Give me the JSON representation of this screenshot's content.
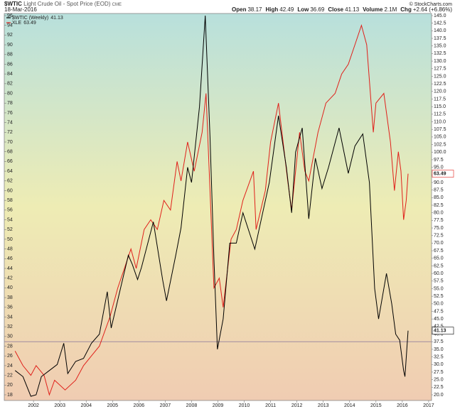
{
  "chart_data": {
    "type": "line",
    "title": "$WTIC",
    "subtitle": "Light Crude Oil - Spot Price (EOD)",
    "exchange": "CME",
    "date": "18-Mar-2016",
    "source": "© StockCharts.com",
    "quote": [
      {
        "label": "Open",
        "value": 38.17
      },
      {
        "label": "High",
        "value": 42.49
      },
      {
        "label": "Low",
        "value": 36.69
      },
      {
        "label": "Close",
        "value": 41.13
      },
      {
        "label": "Volume",
        "value": "2.1M"
      },
      {
        "label": "Chg",
        "value": "+2.64 (+6.86%)"
      }
    ],
    "xlim": [
      2000.89,
      2017.11
    ],
    "xticks": [
      2002,
      2003,
      2004,
      2005,
      2006,
      2007,
      2008,
      2009,
      2010,
      2011,
      2012,
      2013,
      2014,
      2015,
      2016,
      2017
    ],
    "ylim": [
      18,
      96
    ],
    "yticks": [
      18,
      20,
      22,
      24,
      26,
      28,
      30,
      32,
      34,
      36,
      38,
      40,
      42,
      44,
      46,
      48,
      50,
      52,
      54,
      56,
      58,
      60,
      62,
      64,
      66,
      68,
      70,
      72,
      74,
      76,
      78,
      80,
      82,
      84,
      86,
      88,
      90,
      92,
      94,
      96
    ],
    "y2lim": [
      20,
      145
    ],
    "y2ticks": [
      {
        "value": 20,
        "label": "20.0"
      },
      {
        "value": 22.5,
        "label": "22.5"
      },
      {
        "value": 25,
        "label": "25.0"
      },
      {
        "value": 27.5,
        "label": "27.5"
      },
      {
        "value": 30,
        "label": "30.0"
      },
      {
        "value": 32.5,
        "label": "32.5"
      },
      {
        "value": 35,
        "label": "35.0"
      },
      {
        "value": 37.5,
        "label": "37.5"
      },
      {
        "value": 40,
        "label": "40.0"
      },
      {
        "value": 42.5,
        "label": "42.5"
      },
      {
        "value": 45,
        "label": "45.0"
      },
      {
        "value": 47.5,
        "label": "47.5"
      },
      {
        "value": 50,
        "label": "50.0"
      },
      {
        "value": 52.5,
        "label": "52.5"
      },
      {
        "value": 55,
        "label": "55.0"
      },
      {
        "value": 57.5,
        "label": "57.5"
      },
      {
        "value": 60,
        "label": "60.0"
      },
      {
        "value": 62.5,
        "label": "62.5"
      },
      {
        "value": 65,
        "label": "65.0"
      },
      {
        "value": 67.5,
        "label": "67.5"
      },
      {
        "value": 70,
        "label": "70.0"
      },
      {
        "value": 72.5,
        "label": "72.5"
      },
      {
        "value": 75,
        "label": "75.0"
      },
      {
        "value": 77.5,
        "label": "77.5"
      },
      {
        "value": 80,
        "label": "80.0"
      },
      {
        "value": 82.5,
        "label": "82.5"
      },
      {
        "value": 85,
        "label": "85.0"
      },
      {
        "value": 87.5,
        "label": "87.5"
      },
      {
        "value": 90,
        "label": "90.0"
      },
      {
        "value": 92.5,
        "label": "92.5"
      },
      {
        "value": 95,
        "label": "95.0"
      },
      {
        "value": 97.5,
        "label": "97.5"
      },
      {
        "value": 100,
        "label": "100.0"
      },
      {
        "value": 102.5,
        "label": "102.5"
      },
      {
        "value": 105,
        "label": "105.0"
      },
      {
        "value": 107.5,
        "label": "107.5"
      },
      {
        "value": 110,
        "label": "110.0"
      },
      {
        "value": 112.5,
        "label": "112.5"
      },
      {
        "value": 115,
        "label": "115.0"
      },
      {
        "value": 117.5,
        "label": "117.5"
      },
      {
        "value": 120,
        "label": "120.0"
      },
      {
        "value": 122.5,
        "label": "122.5"
      },
      {
        "value": 125,
        "label": "125.0"
      },
      {
        "value": 127.5,
        "label": "127.5"
      },
      {
        "value": 130,
        "label": "130.0"
      },
      {
        "value": 132.5,
        "label": "132.5"
      },
      {
        "value": 135,
        "label": "135.0"
      },
      {
        "value": 137.5,
        "label": "137.5"
      },
      {
        "value": 140,
        "label": "140.0"
      },
      {
        "value": 142.5,
        "label": "142.5"
      },
      {
        "value": 145,
        "label": "145.0"
      }
    ],
    "reference_line": {
      "value": 37.5,
      "axis": "y2",
      "color": "#a08aa0"
    },
    "series": [
      {
        "name": "$WTIC (Weekly)",
        "color": "#000000",
        "axis": "y2",
        "x": [
          2001.3,
          2001.6,
          2001.9,
          2002.1,
          2002.3,
          2002.6,
          2002.9,
          2003.15,
          2003.3,
          2003.6,
          2003.9,
          2004.2,
          2004.5,
          2004.8,
          2004.95,
          2005.3,
          2005.6,
          2005.75,
          2005.95,
          2006.1,
          2006.55,
          2006.9,
          2007.05,
          2007.4,
          2007.6,
          2007.85,
          2008.0,
          2008.3,
          2008.52,
          2008.7,
          2008.85,
          2008.98,
          2009.2,
          2009.45,
          2009.7,
          2009.95,
          2010.4,
          2010.7,
          2010.95,
          2011.3,
          2011.6,
          2011.8,
          2011.95,
          2012.2,
          2012.45,
          2012.7,
          2012.95,
          2013.2,
          2013.6,
          2013.95,
          2014.2,
          2014.5,
          2014.75,
          2014.95,
          2015.1,
          2015.4,
          2015.6,
          2015.75,
          2015.9,
          2016.05,
          2016.1,
          2016.22
        ],
        "values": [
          28,
          26,
          19.5,
          20,
          26,
          28,
          30,
          37,
          27,
          31,
          32,
          37,
          40,
          54,
          42,
          55,
          66,
          63,
          58,
          62,
          77,
          58,
          51,
          66,
          75,
          95,
          90,
          115,
          145,
          105,
          65,
          35,
          45,
          70,
          70,
          80,
          68,
          80,
          90,
          112,
          95,
          80,
          100,
          108,
          78,
          98,
          88,
          95,
          108,
          93,
          102,
          106,
          90,
          55,
          45,
          60,
          50,
          40,
          38,
          28,
          26,
          41.13
        ]
      },
      {
        "name": "XLE",
        "color": "#e0201a",
        "axis": "y",
        "x": [
          2001.3,
          2001.6,
          2001.9,
          2002.1,
          2002.4,
          2002.6,
          2002.8,
          2003.2,
          2003.6,
          2003.9,
          2004.2,
          2004.5,
          2004.9,
          2005.2,
          2005.45,
          2005.7,
          2005.9,
          2006.2,
          2006.45,
          2006.7,
          2006.95,
          2007.2,
          2007.45,
          2007.6,
          2007.85,
          2008.1,
          2008.4,
          2008.55,
          2008.7,
          2008.85,
          2009.05,
          2009.2,
          2009.5,
          2009.7,
          2009.95,
          2010.35,
          2010.45,
          2010.8,
          2011.0,
          2011.3,
          2011.65,
          2011.8,
          2012.1,
          2012.3,
          2012.45,
          2012.8,
          2013.1,
          2013.45,
          2013.7,
          2013.95,
          2014.2,
          2014.45,
          2014.65,
          2014.9,
          2015.0,
          2015.3,
          2015.55,
          2015.7,
          2015.85,
          2015.95,
          2016.05,
          2016.15,
          2016.22
        ],
        "values": [
          27,
          24,
          22,
          24,
          22,
          18,
          21,
          19,
          21,
          24,
          26,
          28,
          34,
          40,
          44,
          48,
          44,
          52,
          54,
          52,
          58,
          56,
          66,
          62,
          70,
          64,
          72,
          80,
          60,
          40,
          42,
          36,
          50,
          52,
          58,
          64,
          52,
          60,
          70,
          78,
          62,
          56,
          72,
          64,
          62,
          72,
          78,
          80,
          84,
          86,
          90,
          94,
          90,
          72,
          78,
          80,
          70,
          60,
          68,
          64,
          54,
          58,
          63.49
        ]
      }
    ]
  }
}
